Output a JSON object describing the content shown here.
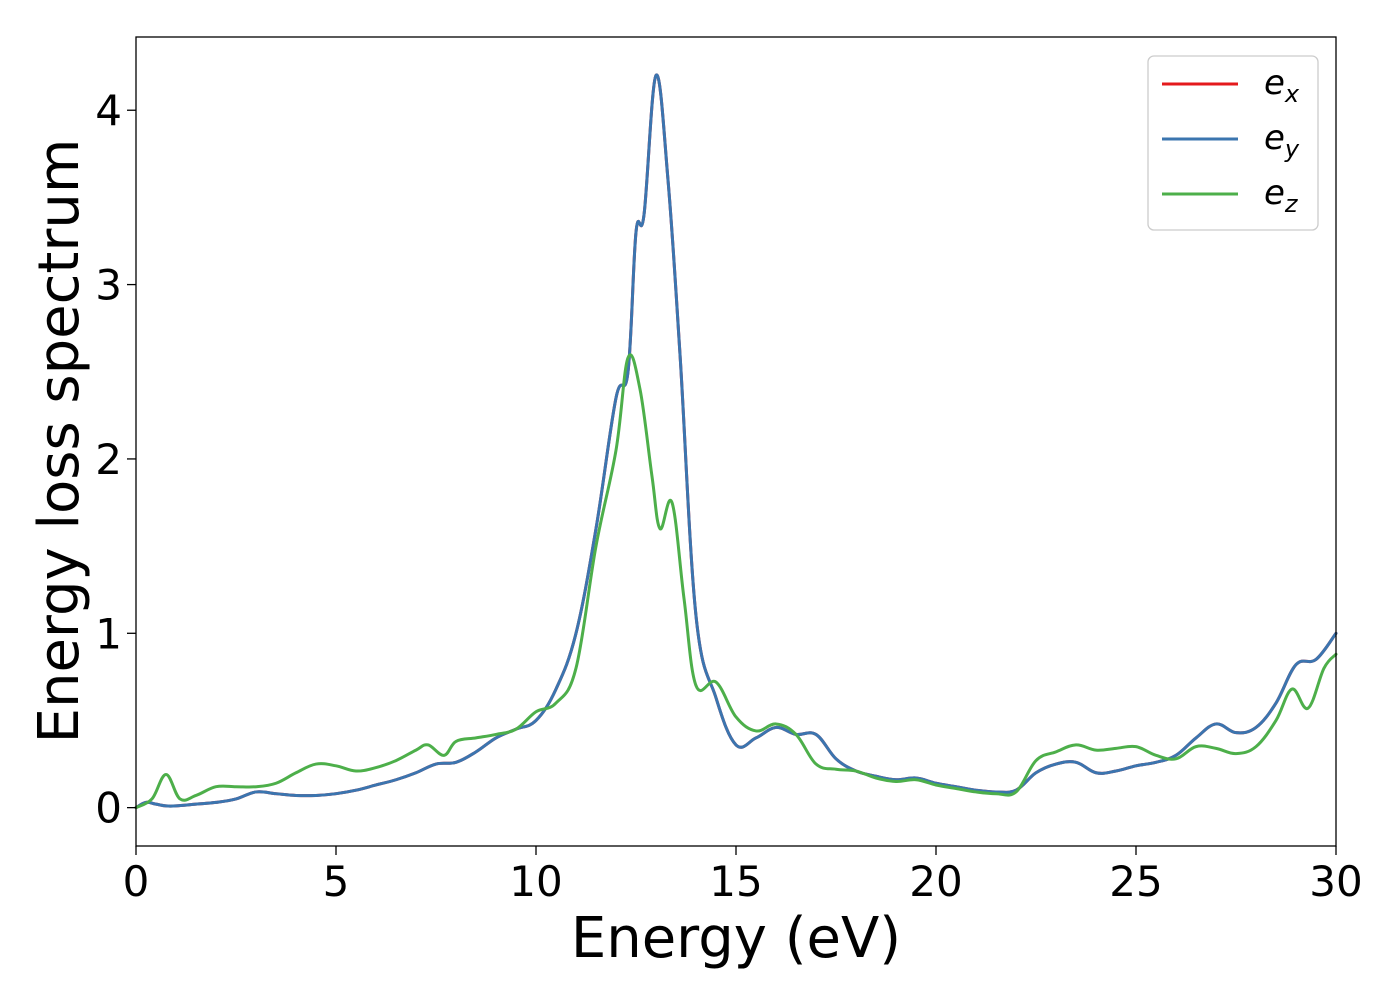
{
  "chart_data": {
    "type": "line",
    "title": "",
    "xlabel": "Energy (eV)",
    "ylabel": "Energy loss spectrum",
    "xlim": [
      0,
      30
    ],
    "ylim": [
      -0.22,
      4.42
    ],
    "xticks": [
      0,
      5,
      10,
      15,
      20,
      25,
      30
    ],
    "yticks": [
      0,
      1,
      2,
      3,
      4
    ],
    "xtick_labels": [
      "0",
      "5",
      "10",
      "15",
      "20",
      "25",
      "30"
    ],
    "ytick_labels": [
      "0",
      "1",
      "2",
      "3",
      "4"
    ],
    "grid": false,
    "legend_position": "top-right",
    "series": [
      {
        "name": "e_x",
        "label_base": "e",
        "label_sub": "x",
        "color": "#e41a1c",
        "x": [
          0,
          0.25,
          0.5,
          0.75,
          1.0,
          1.5,
          2.0,
          2.5,
          3.0,
          3.5,
          4.0,
          4.5,
          5.0,
          5.5,
          6.0,
          6.5,
          7.0,
          7.5,
          8.0,
          8.5,
          9.0,
          9.5,
          10.0,
          10.5,
          11.0,
          11.5,
          12.0,
          12.3,
          12.5,
          12.7,
          13.0,
          13.3,
          13.6,
          14.0,
          14.5,
          15.0,
          15.5,
          16.0,
          16.5,
          17.0,
          17.5,
          18.0,
          18.5,
          19.0,
          19.5,
          20.0,
          20.5,
          21.0,
          21.5,
          22.0,
          22.5,
          23.0,
          23.5,
          24.0,
          24.5,
          25.0,
          25.5,
          26.0,
          26.5,
          27.0,
          27.5,
          28.0,
          28.5,
          29.0,
          29.5,
          30.0
        ],
        "values": [
          0.0,
          0.03,
          0.02,
          0.01,
          0.01,
          0.02,
          0.03,
          0.05,
          0.09,
          0.08,
          0.07,
          0.07,
          0.08,
          0.1,
          0.13,
          0.16,
          0.2,
          0.25,
          0.26,
          0.32,
          0.4,
          0.45,
          0.5,
          0.68,
          1.0,
          1.6,
          2.35,
          2.5,
          3.3,
          3.4,
          4.2,
          3.6,
          2.6,
          1.1,
          0.63,
          0.36,
          0.4,
          0.46,
          0.42,
          0.42,
          0.28,
          0.21,
          0.18,
          0.16,
          0.17,
          0.14,
          0.12,
          0.1,
          0.09,
          0.1,
          0.2,
          0.25,
          0.26,
          0.2,
          0.21,
          0.24,
          0.26,
          0.3,
          0.4,
          0.48,
          0.43,
          0.46,
          0.6,
          0.82,
          0.85,
          1.0
        ]
      },
      {
        "name": "e_y",
        "label_base": "e",
        "label_sub": "y",
        "color": "#3b75af",
        "x": [
          0,
          0.25,
          0.5,
          0.75,
          1.0,
          1.5,
          2.0,
          2.5,
          3.0,
          3.5,
          4.0,
          4.5,
          5.0,
          5.5,
          6.0,
          6.5,
          7.0,
          7.5,
          8.0,
          8.5,
          9.0,
          9.5,
          10.0,
          10.5,
          11.0,
          11.5,
          12.0,
          12.3,
          12.5,
          12.7,
          13.0,
          13.3,
          13.6,
          14.0,
          14.5,
          15.0,
          15.5,
          16.0,
          16.5,
          17.0,
          17.5,
          18.0,
          18.5,
          19.0,
          19.5,
          20.0,
          20.5,
          21.0,
          21.5,
          22.0,
          22.5,
          23.0,
          23.5,
          24.0,
          24.5,
          25.0,
          25.5,
          26.0,
          26.5,
          27.0,
          27.5,
          28.0,
          28.5,
          29.0,
          29.5,
          30.0
        ],
        "values": [
          0.0,
          0.03,
          0.02,
          0.01,
          0.01,
          0.02,
          0.03,
          0.05,
          0.09,
          0.08,
          0.07,
          0.07,
          0.08,
          0.1,
          0.13,
          0.16,
          0.2,
          0.25,
          0.26,
          0.32,
          0.4,
          0.45,
          0.5,
          0.68,
          1.0,
          1.6,
          2.35,
          2.5,
          3.3,
          3.4,
          4.2,
          3.6,
          2.6,
          1.1,
          0.63,
          0.36,
          0.4,
          0.46,
          0.42,
          0.42,
          0.28,
          0.21,
          0.18,
          0.16,
          0.17,
          0.14,
          0.12,
          0.1,
          0.09,
          0.1,
          0.2,
          0.25,
          0.26,
          0.2,
          0.21,
          0.24,
          0.26,
          0.3,
          0.4,
          0.48,
          0.43,
          0.46,
          0.6,
          0.82,
          0.85,
          1.0
        ]
      },
      {
        "name": "e_z",
        "label_base": "e",
        "label_sub": "z",
        "color": "#4daf4a",
        "x": [
          0,
          0.4,
          0.75,
          1.1,
          1.5,
          2.0,
          2.5,
          3.0,
          3.5,
          4.0,
          4.5,
          5.0,
          5.5,
          6.0,
          6.5,
          7.0,
          7.3,
          7.7,
          8.0,
          8.5,
          9.0,
          9.5,
          10.0,
          10.5,
          11.0,
          11.5,
          12.0,
          12.3,
          12.6,
          12.9,
          13.1,
          13.4,
          13.7,
          14.0,
          14.5,
          15.0,
          15.5,
          16.0,
          16.5,
          17.0,
          17.5,
          18.0,
          18.5,
          19.0,
          19.5,
          20.0,
          20.5,
          21.0,
          21.5,
          22.0,
          22.5,
          23.0,
          23.5,
          24.0,
          24.5,
          25.0,
          25.5,
          26.0,
          26.5,
          27.0,
          27.5,
          28.0,
          28.5,
          28.9,
          29.3,
          29.7,
          30.0
        ],
        "values": [
          0.0,
          0.05,
          0.19,
          0.05,
          0.07,
          0.12,
          0.12,
          0.12,
          0.14,
          0.2,
          0.25,
          0.24,
          0.21,
          0.23,
          0.27,
          0.33,
          0.36,
          0.3,
          0.38,
          0.4,
          0.42,
          0.45,
          0.55,
          0.6,
          0.8,
          1.5,
          2.05,
          2.58,
          2.4,
          1.9,
          1.6,
          1.75,
          1.2,
          0.7,
          0.72,
          0.52,
          0.44,
          0.48,
          0.42,
          0.25,
          0.22,
          0.21,
          0.17,
          0.15,
          0.16,
          0.13,
          0.11,
          0.09,
          0.08,
          0.09,
          0.27,
          0.32,
          0.36,
          0.33,
          0.34,
          0.35,
          0.3,
          0.28,
          0.35,
          0.34,
          0.31,
          0.35,
          0.5,
          0.68,
          0.57,
          0.8,
          0.88
        ]
      }
    ]
  }
}
